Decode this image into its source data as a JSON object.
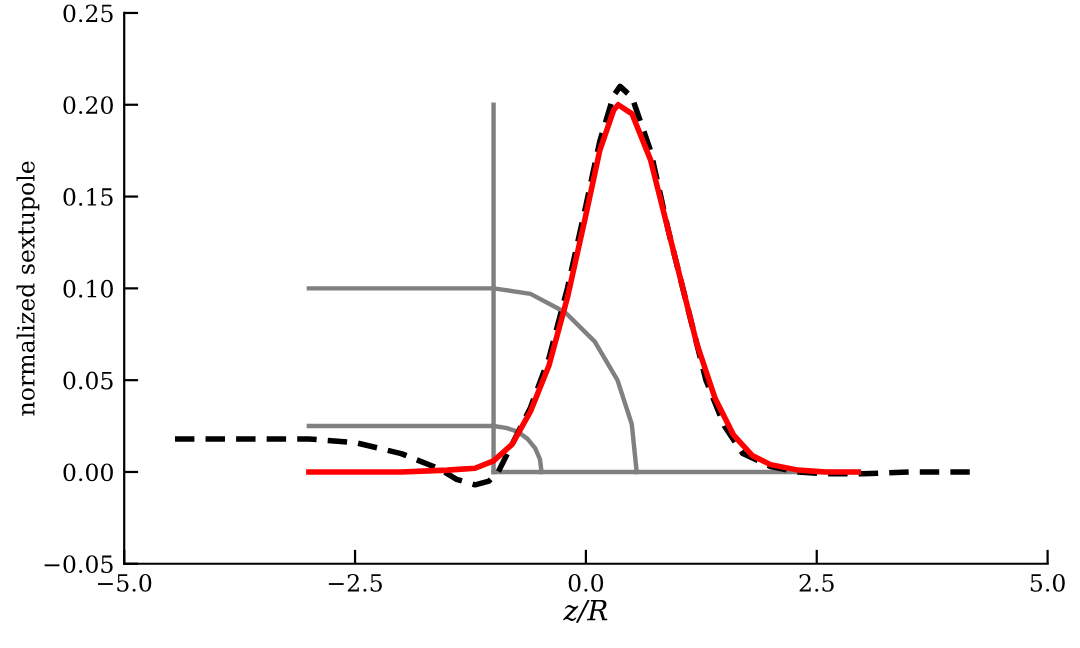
{
  "chart_data": {
    "type": "line",
    "xlabel": "z/R",
    "ylabel": "normalized sextupole",
    "xlim": [
      -5,
      5
    ],
    "ylim": [
      -0.05,
      0.25
    ],
    "xticks": [
      {
        "value": -5,
        "label": "−5.0"
      },
      {
        "value": -2.5,
        "label": "−2.5"
      },
      {
        "value": 0,
        "label": "0.0"
      },
      {
        "value": 2.5,
        "label": "2.5"
      },
      {
        "value": 5,
        "label": "5.0"
      }
    ],
    "yticks": [
      {
        "value": -0.05,
        "label": "−0.05"
      },
      {
        "value": 0,
        "label": "0.00"
      },
      {
        "value": 0.05,
        "label": "0.05"
      },
      {
        "value": 0.1,
        "label": "0.10"
      },
      {
        "value": 0.15,
        "label": "0.15"
      },
      {
        "value": 0.2,
        "label": "0.20"
      },
      {
        "value": 0.25,
        "label": "0.25"
      }
    ],
    "grid": false,
    "marker": "none",
    "series": [
      {
        "color": "#808080",
        "line_style": "solid",
        "x": [
          -1,
          -1
        ],
        "values": [
          0,
          0.2
        ]
      },
      {
        "color": "#808080",
        "line_style": "solid",
        "x": [
          -1,
          2.95
        ],
        "values": [
          0,
          0
        ]
      },
      {
        "color": "#808080",
        "line_style": "solid",
        "x": [
          -3,
          -1,
          -0.6,
          -0.225,
          0.096,
          0.342,
          0.497,
          0.55
        ],
        "values": [
          0.1,
          0.1,
          0.097,
          0.087,
          0.071,
          0.05,
          0.026,
          0
        ]
      },
      {
        "color": "#808080",
        "line_style": "solid",
        "x": [
          -3,
          -1,
          -0.865,
          -0.74,
          -0.632,
          -0.55,
          -0.498,
          -0.48
        ],
        "values": [
          0.025,
          0.025,
          0.024,
          0.022,
          0.018,
          0.013,
          0.007,
          0
        ]
      },
      {
        "color": "#000000",
        "line_style": "dashed",
        "x": [
          -4.45,
          -3,
          -2.5,
          -2,
          -1.6,
          -1.4,
          -1.2,
          -1.05,
          -0.95,
          -0.8,
          -0.6,
          -0.4,
          -0.2,
          0,
          0.15,
          0.3,
          0.37,
          0.5,
          0.7,
          0.9,
          1.1,
          1.3,
          1.5,
          1.7,
          2.0,
          2.3,
          2.6,
          3.0,
          3.5,
          4.2
        ],
        "values": [
          0.018,
          0.018,
          0.016,
          0.01,
          0.002,
          -0.004,
          -0.007,
          -0.005,
          0,
          0.015,
          0.035,
          0.062,
          0.1,
          0.145,
          0.18,
          0.205,
          0.21,
          0.204,
          0.175,
          0.13,
          0.09,
          0.05,
          0.025,
          0.01,
          0.003,
          0,
          -0.001,
          -0.001,
          0,
          0
        ]
      },
      {
        "color": "#ff0000",
        "line_style": "solid",
        "x": [
          -3,
          -2,
          -1.5,
          -1.2,
          -1.0,
          -0.8,
          -0.6,
          -0.4,
          -0.2,
          0,
          0.15,
          0.3,
          0.35,
          0.5,
          0.7,
          0.9,
          1.0,
          1.2,
          1.4,
          1.6,
          1.8,
          2.0,
          2.3,
          2.6,
          2.95
        ],
        "values": [
          0,
          0,
          0.001,
          0.002,
          0.006,
          0.015,
          0.033,
          0.058,
          0.095,
          0.14,
          0.175,
          0.197,
          0.2,
          0.195,
          0.17,
          0.13,
          0.11,
          0.07,
          0.04,
          0.02,
          0.009,
          0.004,
          0.001,
          0,
          0
        ]
      }
    ]
  }
}
